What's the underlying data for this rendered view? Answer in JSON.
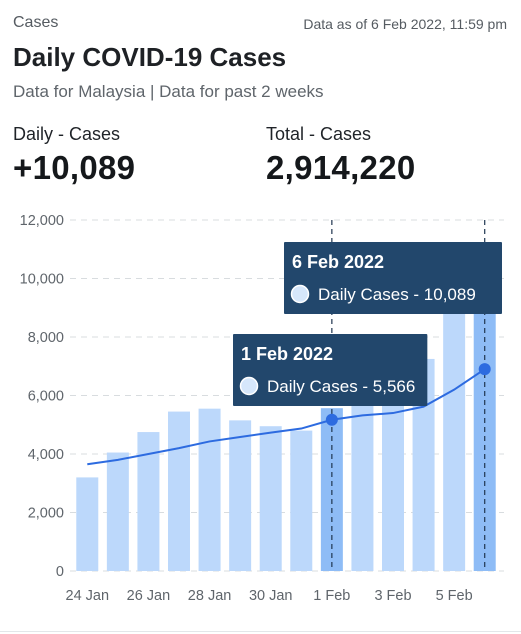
{
  "header": {
    "section_label": "Cases",
    "as_of": "Data as of 6 Feb 2022, 11:59 pm",
    "title": "Daily COVID-19 Cases",
    "subtitle": "Data for Malaysia | Data for past 2 weeks"
  },
  "stats": {
    "daily_label": "Daily - Cases",
    "daily_value": "+10,089",
    "total_label": "Total - Cases",
    "total_value": "2,914,220"
  },
  "colors": {
    "bar": "#bcd8fb",
    "bar_highlight": "#8ebcf6",
    "line": "#2d6be0",
    "tooltip_bg": "#22476c",
    "grid": "#d8dcdf"
  },
  "chart_data": {
    "type": "bar",
    "dates": [
      "24 Jan",
      "25 Jan",
      "26 Jan",
      "27 Jan",
      "28 Jan",
      "29 Jan",
      "30 Jan",
      "31 Jan",
      "1 Feb",
      "2 Feb",
      "3 Feb",
      "4 Feb",
      "5 Feb",
      "6 Feb"
    ],
    "x_tick_labels": [
      "24 Jan",
      "26 Jan",
      "28 Jan",
      "30 Jan",
      "1 Feb",
      "3 Feb",
      "5 Feb"
    ],
    "series": [
      {
        "type": "bar",
        "values": [
          3200,
          4050,
          4750,
          5450,
          5550,
          5150,
          4950,
          4800,
          5566,
          5650,
          5750,
          7250,
          9100,
          10089
        ]
      },
      {
        "type": "line",
        "values": [
          3650,
          3800,
          4000,
          4200,
          4430,
          4580,
          4730,
          4870,
          5170,
          5320,
          5400,
          5620,
          6200,
          6900
        ]
      }
    ],
    "y_ticks": [
      "12,000",
      "10,000",
      "8,000",
      "6,000",
      "4,000",
      "2,000",
      "0"
    ],
    "ylim": [
      0,
      12000
    ],
    "grid": true,
    "highlighted": [
      "1 Feb",
      "6 Feb"
    ],
    "tooltips": [
      {
        "date": "1 Feb 2022",
        "text": "Daily Cases - 5,566"
      },
      {
        "date": "6 Feb 2022",
        "text": "Daily Cases - 10,089"
      }
    ]
  }
}
